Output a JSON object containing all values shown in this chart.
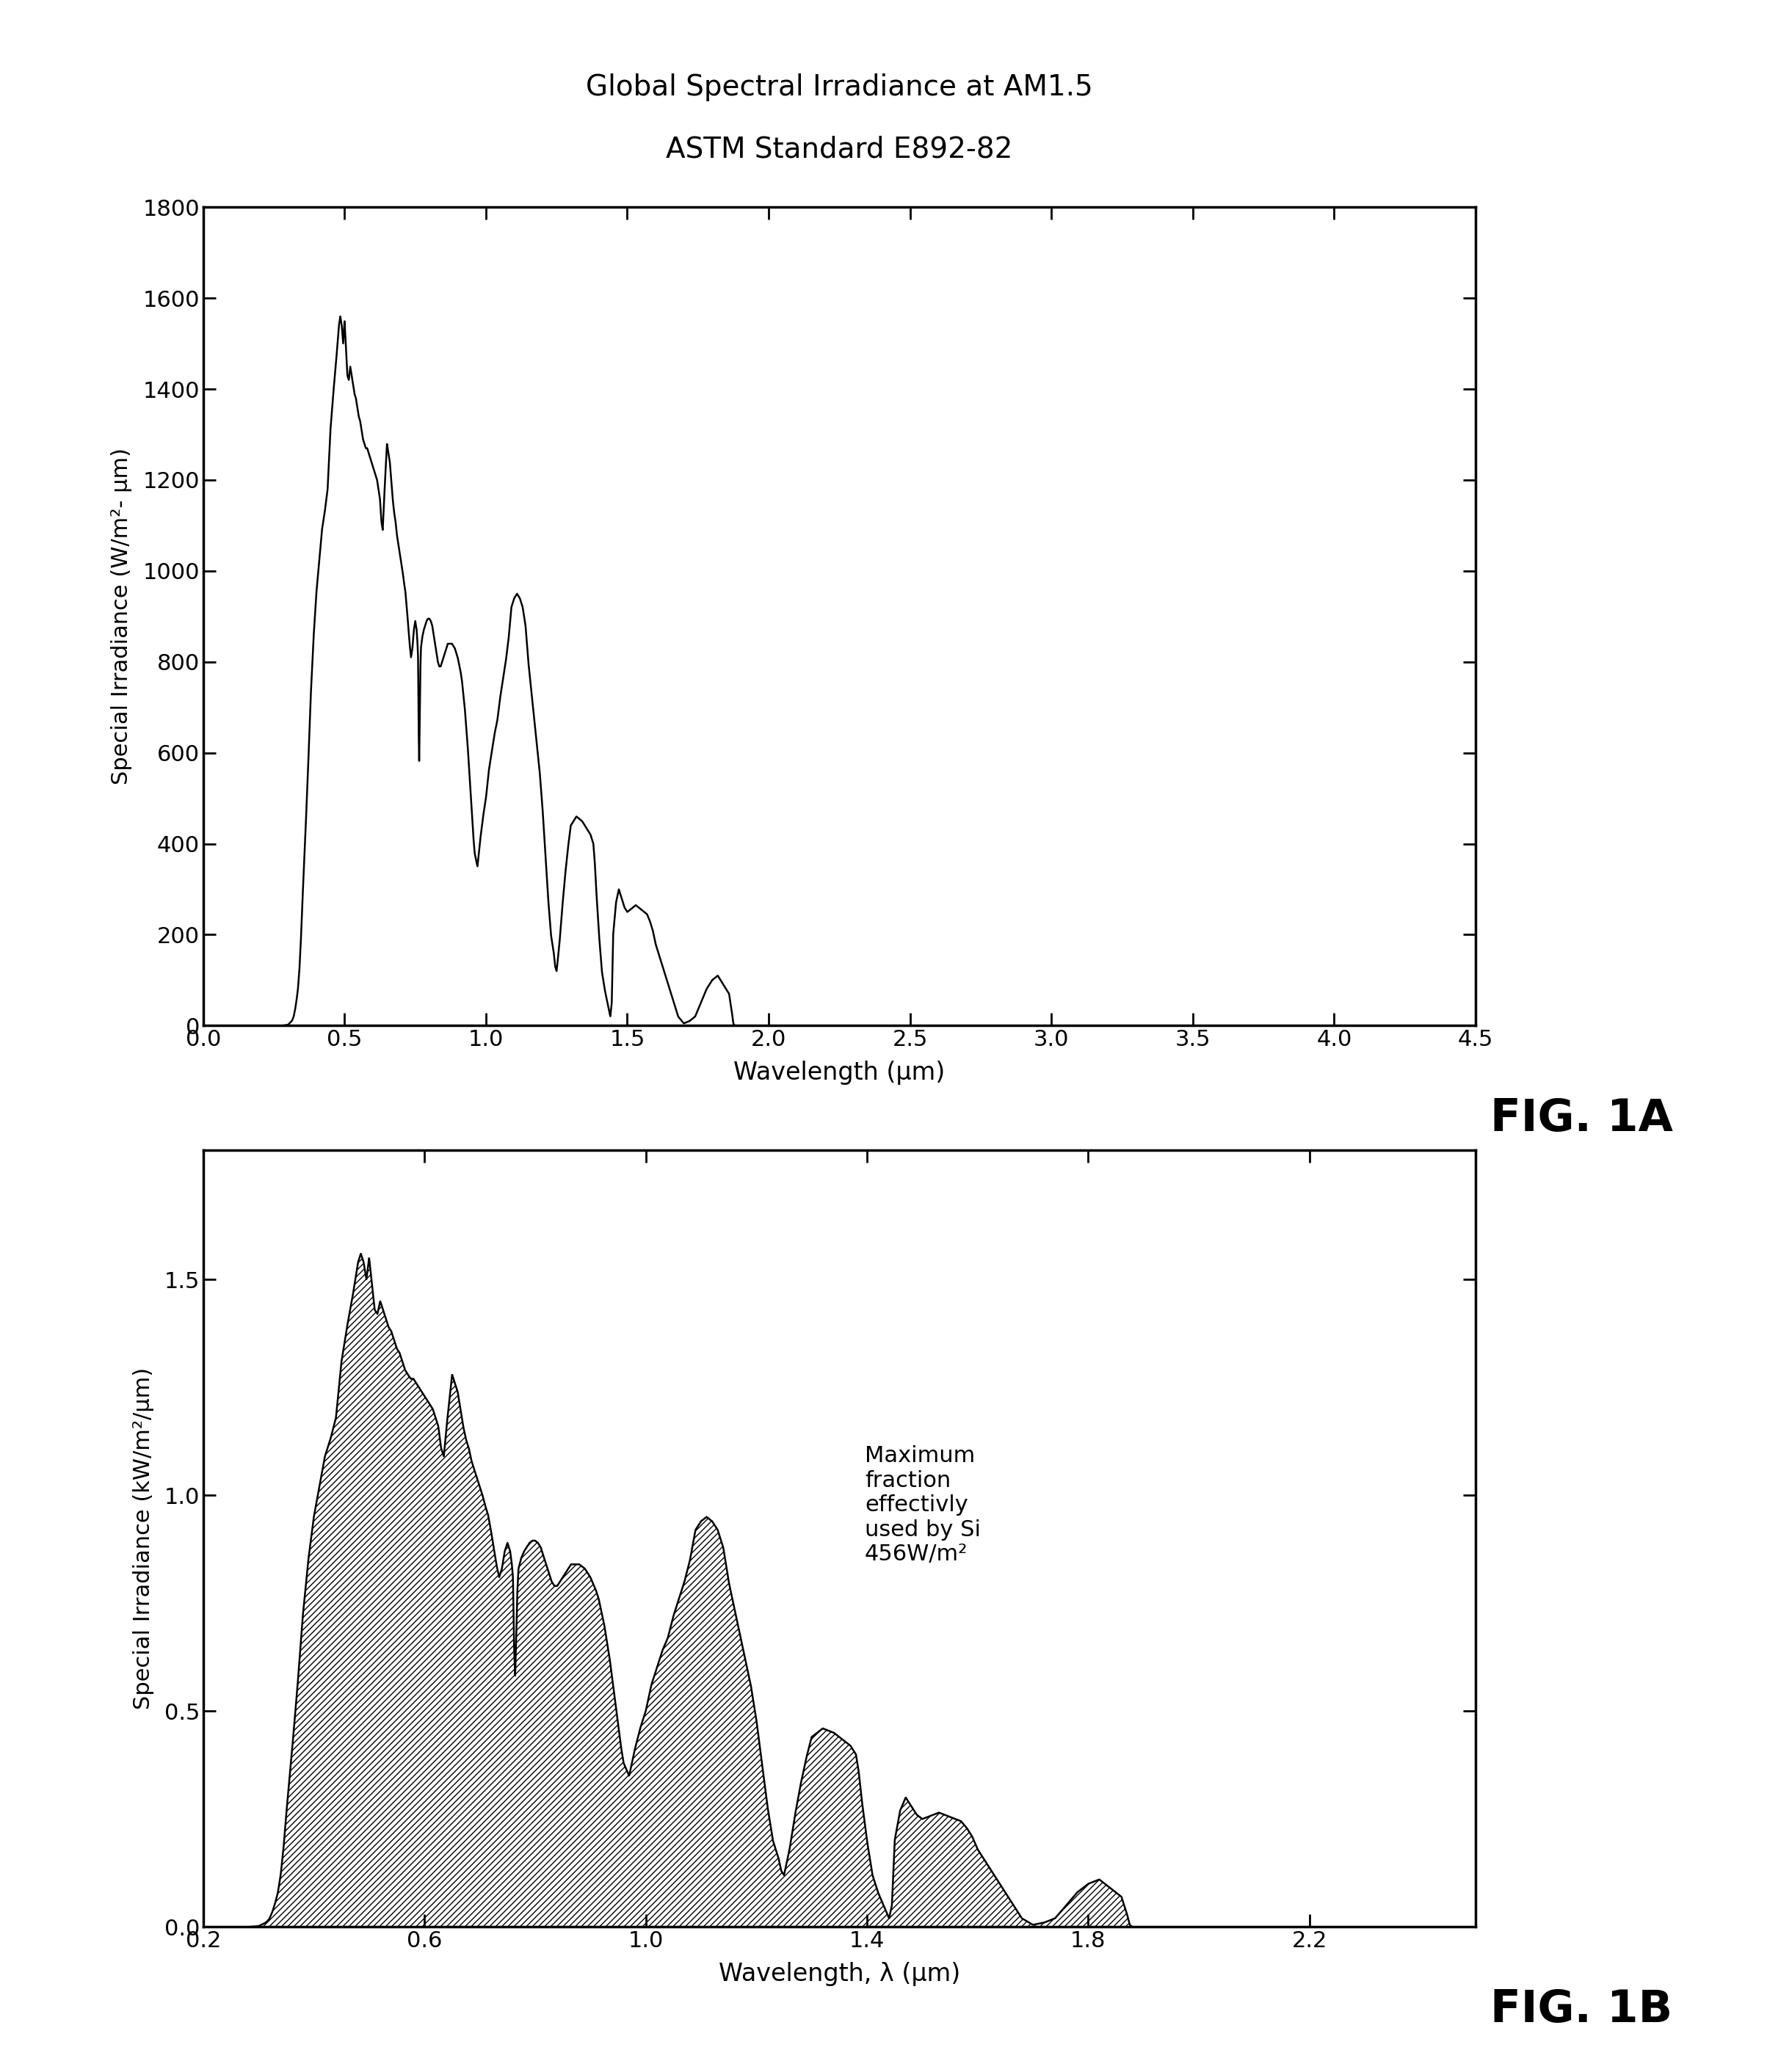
{
  "fig1a_title_line1": "Global Spectral Irradiance at AM1.5",
  "fig1a_title_line2": "ASTM Standard E892-82",
  "fig1a_xlabel": "Wavelength (μm)",
  "fig1a_ylabel": "Special Irradiance (W/m²- μm)",
  "fig1a_xlim": [
    0.0,
    4.5
  ],
  "fig1a_ylim": [
    0,
    1800
  ],
  "fig1a_xticks": [
    0.0,
    0.5,
    1.0,
    1.5,
    2.0,
    2.5,
    3.0,
    3.5,
    4.0,
    4.5
  ],
  "fig1a_yticks": [
    0,
    200,
    400,
    600,
    800,
    1000,
    1200,
    1400,
    1600,
    1800
  ],
  "fig1a_label": "FIG. 1A",
  "fig1b_xlabel": "Wavelength, λ (μm)",
  "fig1b_ylabel": "Special Irradiance (kW/m²/μm)",
  "fig1b_xlim": [
    0.2,
    2.5
  ],
  "fig1b_ylim": [
    0.0,
    1.8
  ],
  "fig1b_xticks": [
    0.2,
    0.6,
    1.0,
    1.4,
    1.8,
    2.2
  ],
  "fig1b_yticks": [
    0.0,
    0.5,
    1.0,
    1.5
  ],
  "fig1b_label": "FIG. 1B",
  "fig1b_annotation": "Maximum\nfraction\neffectivly\nused by Si\n456W/m²",
  "background_color": "#ffffff",
  "line_color": "#000000",
  "hatch_pattern": "////",
  "spectrum_wl": [
    0.0,
    0.28,
    0.3,
    0.305,
    0.31,
    0.315,
    0.32,
    0.325,
    0.33,
    0.335,
    0.34,
    0.345,
    0.35,
    0.36,
    0.37,
    0.38,
    0.39,
    0.4,
    0.41,
    0.42,
    0.43,
    0.44,
    0.45,
    0.46,
    0.47,
    0.48,
    0.485,
    0.49,
    0.495,
    0.5,
    0.505,
    0.51,
    0.515,
    0.52,
    0.525,
    0.53,
    0.535,
    0.54,
    0.545,
    0.55,
    0.555,
    0.56,
    0.565,
    0.57,
    0.575,
    0.58,
    0.585,
    0.59,
    0.595,
    0.6,
    0.605,
    0.61,
    0.615,
    0.62,
    0.625,
    0.63,
    0.635,
    0.64,
    0.645,
    0.65,
    0.655,
    0.66,
    0.665,
    0.67,
    0.675,
    0.68,
    0.685,
    0.69,
    0.695,
    0.7,
    0.705,
    0.71,
    0.715,
    0.72,
    0.725,
    0.73,
    0.735,
    0.74,
    0.745,
    0.75,
    0.755,
    0.758,
    0.76,
    0.762,
    0.764,
    0.766,
    0.768,
    0.77,
    0.775,
    0.78,
    0.785,
    0.79,
    0.795,
    0.8,
    0.805,
    0.81,
    0.815,
    0.82,
    0.825,
    0.83,
    0.835,
    0.84,
    0.845,
    0.85,
    0.855,
    0.86,
    0.865,
    0.87,
    0.875,
    0.88,
    0.885,
    0.89,
    0.895,
    0.9,
    0.905,
    0.91,
    0.915,
    0.92,
    0.925,
    0.93,
    0.935,
    0.94,
    0.945,
    0.95,
    0.955,
    0.96,
    0.97,
    0.98,
    0.99,
    1.0,
    1.01,
    1.02,
    1.03,
    1.04,
    1.05,
    1.06,
    1.07,
    1.08,
    1.09,
    1.1,
    1.11,
    1.12,
    1.13,
    1.14,
    1.145,
    1.15,
    1.16,
    1.17,
    1.18,
    1.19,
    1.2,
    1.21,
    1.22,
    1.23,
    1.24,
    1.245,
    1.25,
    1.26,
    1.27,
    1.28,
    1.29,
    1.3,
    1.31,
    1.32,
    1.33,
    1.34,
    1.35,
    1.36,
    1.37,
    1.38,
    1.385,
    1.39,
    1.4,
    1.41,
    1.42,
    1.43,
    1.44,
    1.445,
    1.45,
    1.46,
    1.47,
    1.48,
    1.49,
    1.5,
    1.51,
    1.52,
    1.53,
    1.54,
    1.55,
    1.56,
    1.57,
    1.58,
    1.59,
    1.6,
    1.62,
    1.64,
    1.66,
    1.68,
    1.7,
    1.72,
    1.74,
    1.76,
    1.78,
    1.8,
    1.82,
    1.84,
    1.86,
    1.87,
    1.875,
    1.88,
    1.89,
    1.9,
    1.92,
    1.94,
    1.96,
    1.98,
    2.0,
    2.01,
    2.02,
    2.03,
    2.04,
    2.05,
    2.06,
    2.07,
    2.08,
    2.09,
    2.1,
    2.12,
    2.14,
    2.16,
    2.18,
    2.2,
    2.22,
    2.24,
    2.26,
    2.28,
    2.3,
    2.35,
    2.4,
    2.45,
    2.5,
    2.6,
    2.8,
    3.0,
    3.5,
    4.0,
    4.5
  ],
  "spectrum_irr": [
    0,
    0,
    2,
    5,
    8,
    12,
    20,
    35,
    55,
    80,
    120,
    180,
    260,
    400,
    550,
    720,
    850,
    950,
    1020,
    1090,
    1130,
    1180,
    1310,
    1390,
    1460,
    1540,
    1560,
    1540,
    1500,
    1550,
    1490,
    1430,
    1420,
    1450,
    1430,
    1410,
    1390,
    1380,
    1360,
    1340,
    1330,
    1310,
    1290,
    1280,
    1270,
    1270,
    1260,
    1250,
    1240,
    1230,
    1220,
    1210,
    1200,
    1180,
    1160,
    1110,
    1090,
    1160,
    1220,
    1280,
    1260,
    1240,
    1200,
    1160,
    1130,
    1110,
    1080,
    1060,
    1040,
    1020,
    1000,
    975,
    955,
    920,
    880,
    840,
    810,
    830,
    870,
    890,
    870,
    840,
    810,
    650,
    580,
    680,
    780,
    830,
    855,
    870,
    880,
    890,
    895,
    895,
    890,
    880,
    860,
    840,
    820,
    800,
    790,
    790,
    800,
    810,
    820,
    830,
    840,
    840,
    840,
    840,
    835,
    830,
    820,
    810,
    795,
    780,
    760,
    730,
    700,
    660,
    620,
    570,
    520,
    470,
    420,
    380,
    350,
    410,
    460,
    500,
    560,
    600,
    640,
    670,
    720,
    760,
    800,
    850,
    920,
    940,
    950,
    940,
    920,
    880,
    840,
    800,
    740,
    680,
    620,
    560,
    480,
    380,
    280,
    200,
    160,
    130,
    120,
    180,
    260,
    330,
    390,
    440,
    450,
    460,
    455,
    450,
    440,
    430,
    420,
    400,
    360,
    300,
    200,
    120,
    80,
    50,
    20,
    50,
    200,
    270,
    300,
    280,
    260,
    250,
    255,
    260,
    265,
    260,
    255,
    250,
    245,
    230,
    210,
    180,
    140,
    100,
    60,
    20,
    5,
    10,
    20,
    50,
    80,
    100,
    110,
    90,
    70,
    30,
    5,
    0,
    0,
    0,
    0,
    0,
    0,
    0,
    0,
    0,
    0,
    0,
    0,
    0,
    0,
    0,
    0,
    0,
    0,
    0,
    0,
    0,
    0,
    0,
    0,
    0,
    0,
    0,
    0,
    0,
    0,
    0,
    0,
    0,
    0,
    0,
    0,
    0,
    0
  ]
}
